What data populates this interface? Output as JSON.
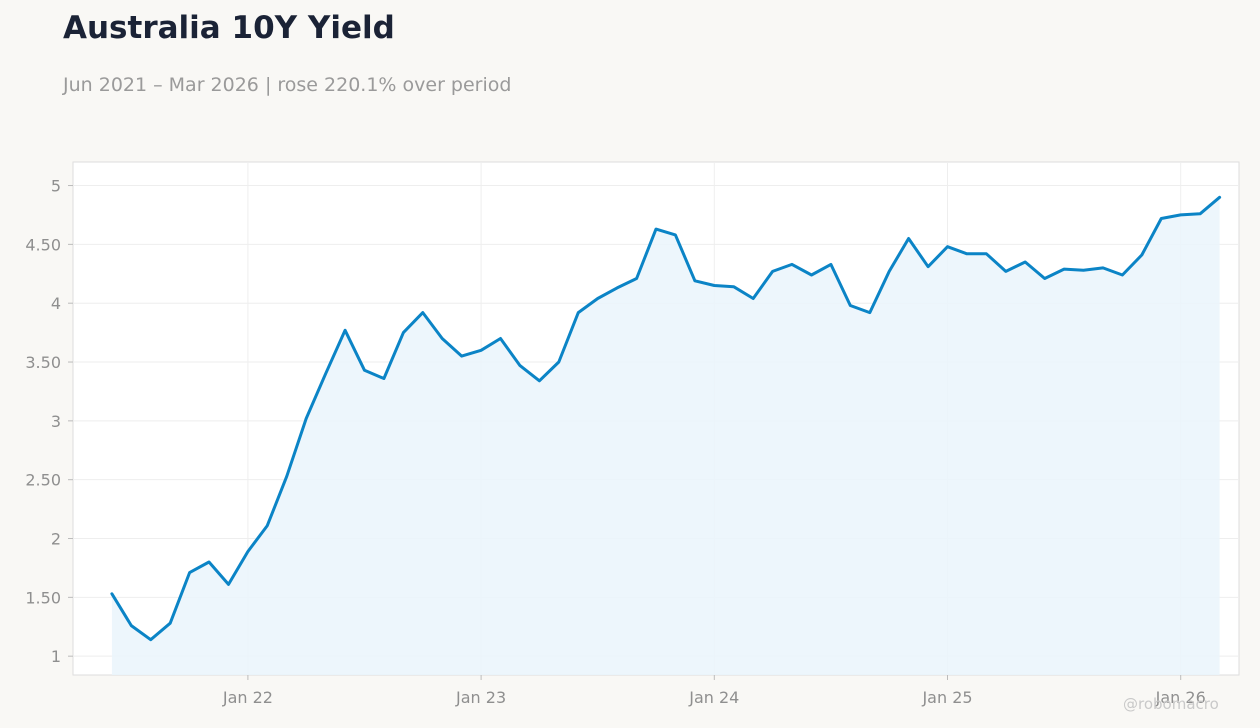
{
  "header": {
    "title": "Australia 10Y Yield",
    "subtitle": "Jun 2021 – Mar 2026 | rose 220.1% over period"
  },
  "watermark": "@robomacro",
  "chart_data": {
    "type": "area",
    "title": "Australia 10Y Yield",
    "subtitle": "Jun 2021 – Mar 2026 | rose 220.1% over period",
    "xlabel": "",
    "ylabel": "",
    "x": [
      "2021-06",
      "2021-07",
      "2021-08",
      "2021-09",
      "2021-10",
      "2021-11",
      "2021-12",
      "2022-01",
      "2022-02",
      "2022-03",
      "2022-04",
      "2022-05",
      "2022-06",
      "2022-07",
      "2022-08",
      "2022-09",
      "2022-10",
      "2022-11",
      "2022-12",
      "2023-01",
      "2023-02",
      "2023-03",
      "2023-04",
      "2023-05",
      "2023-06",
      "2023-07",
      "2023-08",
      "2023-09",
      "2023-10",
      "2023-11",
      "2023-12",
      "2024-01",
      "2024-02",
      "2024-03",
      "2024-04",
      "2024-05",
      "2024-06",
      "2024-07",
      "2024-08",
      "2024-09",
      "2024-10",
      "2024-11",
      "2024-12",
      "2025-01",
      "2025-02",
      "2025-03",
      "2025-04",
      "2025-05",
      "2025-06",
      "2025-07",
      "2025-08",
      "2025-09",
      "2025-10",
      "2025-11",
      "2025-12",
      "2026-01",
      "2026-02",
      "2026-03"
    ],
    "series": [
      {
        "values": [
          1.53,
          1.26,
          1.14,
          1.28,
          1.71,
          1.8,
          1.61,
          1.89,
          2.11,
          2.53,
          3.02,
          3.4,
          3.77,
          3.43,
          3.36,
          3.75,
          3.92,
          3.7,
          3.55,
          3.6,
          3.7,
          3.47,
          3.34,
          3.5,
          3.92,
          4.04,
          4.13,
          4.21,
          4.63,
          4.58,
          4.19,
          4.15,
          4.14,
          4.04,
          4.27,
          4.33,
          4.24,
          4.33,
          3.98,
          3.92,
          4.27,
          4.55,
          4.31,
          4.48,
          4.42,
          4.42,
          4.27,
          4.35,
          4.21,
          4.29,
          4.28,
          4.3,
          4.24,
          4.41,
          4.72,
          4.75,
          4.76,
          4.9
        ]
      }
    ],
    "x_ticks": [
      "Jan 22",
      "Jan 23",
      "Jan 24",
      "Jan 25",
      "Jan 26"
    ],
    "x_tick_dates": [
      "2022-01",
      "2023-01",
      "2024-01",
      "2025-01",
      "2026-01"
    ],
    "y_ticks": [
      "1",
      "1.50",
      "2",
      "2.50",
      "3",
      "3.50",
      "4",
      "4.50",
      "5"
    ],
    "y_tick_values": [
      1,
      1.5,
      2,
      2.5,
      3,
      3.5,
      4,
      4.5,
      5
    ],
    "xlim": [
      "2021-04",
      "2026-04"
    ],
    "ylim": [
      0.84,
      5.2
    ],
    "grid": true,
    "legend": "none",
    "colors": {
      "line": "#0b84c6",
      "fill": "#eaf4fb",
      "grid": "#eeeeee",
      "frame": "#dddddd",
      "plot_bg": "#ffffff",
      "page_bg": "#f9f8f5"
    }
  }
}
